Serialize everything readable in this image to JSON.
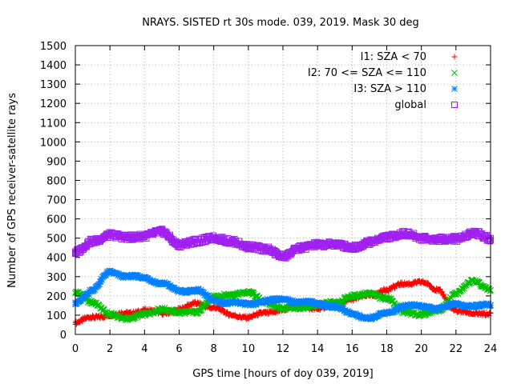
{
  "chart_data": {
    "type": "scatter",
    "title": "NRAYS. SISTED rt 30s mode. 039, 2019. Mask 30 deg",
    "xlabel": "GPS time [hours of doy 039, 2019]",
    "ylabel": "Number of GPS receiver-satellite rays",
    "xlim": [
      0,
      24
    ],
    "ylim": [
      0,
      1500
    ],
    "xticks": [
      "0",
      "2",
      "4",
      "6",
      "8",
      "10",
      "12",
      "14",
      "16",
      "18",
      "20",
      "22",
      "24"
    ],
    "yticks": [
      "0",
      "100",
      "200",
      "300",
      "400",
      "500",
      "600",
      "700",
      "800",
      "900",
      "1000",
      "1100",
      "1200",
      "1300",
      "1400",
      "1500"
    ],
    "grid": true,
    "legend_position": "top-right",
    "series": [
      {
        "name": "I1: SZA < 70",
        "color": "#ff0000",
        "marker": "plus",
        "x": [
          0,
          1,
          2,
          3,
          4,
          5,
          6,
          7,
          8,
          9,
          10,
          11,
          12,
          13,
          14,
          15,
          16,
          17,
          18,
          19,
          20,
          21,
          22,
          23,
          24
        ],
        "values": [
          60,
          90,
          100,
          110,
          125,
          110,
          130,
          160,
          140,
          100,
          90,
          110,
          130,
          145,
          135,
          150,
          185,
          200,
          235,
          260,
          275,
          225,
          125,
          105,
          110
        ]
      },
      {
        "name": "I2: 70 <= SZA <= 110",
        "color": "#00c000",
        "marker": "cross",
        "x": [
          0,
          1,
          2,
          3,
          4,
          5,
          6,
          7,
          8,
          9,
          10,
          11,
          12,
          13,
          14,
          15,
          16,
          17,
          18,
          19,
          20,
          21,
          22,
          23,
          24
        ],
        "values": [
          215,
          170,
          100,
          85,
          100,
          135,
          110,
          120,
          190,
          210,
          215,
          170,
          130,
          140,
          150,
          170,
          195,
          215,
          185,
          120,
          100,
          130,
          210,
          280,
          230
        ]
      },
      {
        "name": "I3: SZA > 110",
        "color": "#0080ff",
        "marker": "star",
        "x": [
          0,
          1,
          2,
          3,
          4,
          5,
          6,
          7,
          8,
          9,
          10,
          11,
          12,
          13,
          14,
          15,
          16,
          17,
          18,
          19,
          20,
          21,
          22,
          23,
          24
        ],
        "values": [
          165,
          230,
          325,
          300,
          295,
          265,
          225,
          230,
          175,
          165,
          155,
          175,
          180,
          170,
          160,
          145,
          105,
          85,
          110,
          150,
          145,
          135,
          155,
          150,
          150
        ]
      },
      {
        "name": "global",
        "color": "#a020f0",
        "marker": "square",
        "x": [
          0,
          1,
          2,
          3,
          4,
          5,
          6,
          7,
          8,
          9,
          10,
          11,
          12,
          13,
          14,
          15,
          16,
          17,
          18,
          19,
          20,
          21,
          22,
          23,
          24
        ],
        "values": [
          430,
          480,
          520,
          500,
          515,
          530,
          470,
          480,
          505,
          480,
          460,
          440,
          410,
          445,
          470,
          465,
          455,
          475,
          510,
          520,
          505,
          490,
          500,
          525,
          500
        ]
      }
    ]
  }
}
